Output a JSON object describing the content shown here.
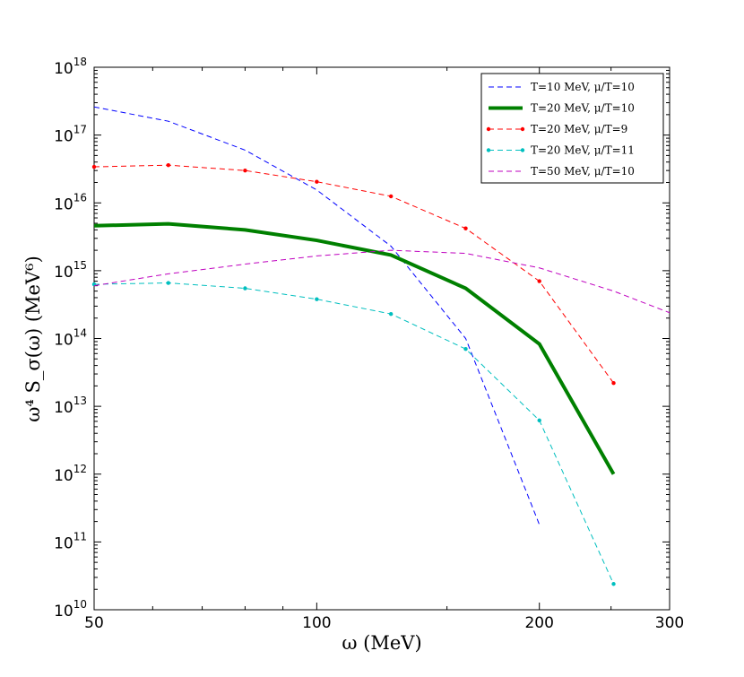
{
  "chart_data": {
    "type": "line",
    "title": "",
    "xlabel": "ω (MeV)",
    "ylabel": "ω⁴ S_σ(ω) (MeV⁶)",
    "xscale": "log",
    "yscale": "log",
    "xlim": [
      50,
      300
    ],
    "ylim": [
      10000000000.0,
      1e+18
    ],
    "x_ticks": [
      {
        "value": 50,
        "label": "50"
      },
      {
        "value": 100,
        "label": "100"
      },
      {
        "value": 200,
        "label": "200"
      },
      {
        "value": 300,
        "label": "300"
      }
    ],
    "y_ticks": [
      {
        "exp": 10,
        "label": "10"
      },
      {
        "exp": 11,
        "label": "10"
      },
      {
        "exp": 12,
        "label": "10"
      },
      {
        "exp": 13,
        "label": "10"
      },
      {
        "exp": 14,
        "label": "10"
      },
      {
        "exp": 15,
        "label": "10"
      },
      {
        "exp": 16,
        "label": "10"
      },
      {
        "exp": 17,
        "label": "10"
      },
      {
        "exp": 18,
        "label": "10"
      }
    ],
    "legend_position": "top-right",
    "series": [
      {
        "name": "T=10 MeV, μ/T=10",
        "color": "#0000ff",
        "style": "dashed",
        "markers": false,
        "x": [
          50,
          63,
          80,
          100,
          126,
          159,
          200
        ],
        "y": [
          2.6e+17,
          1.6e+17,
          6e+16,
          1.55e+16,
          2300000000000000.0,
          100000000000000.0,
          180000000000.0
        ]
      },
      {
        "name": "T=20 MeV, μ/T=10",
        "color": "#008000",
        "style": "solid-thick",
        "markers": false,
        "x": [
          50,
          63,
          80,
          100,
          126,
          159,
          200,
          252
        ],
        "y": [
          4600000000000000.0,
          4900000000000000.0,
          4000000000000000.0,
          2800000000000000.0,
          1700000000000000.0,
          550000000000000.0,
          83000000000000.0,
          1000000000000.0
        ]
      },
      {
        "name": "T=20 MeV, μ/T=9",
        "color": "#ff0000",
        "style": "dashed",
        "markers": true,
        "x": [
          50,
          63,
          80,
          100,
          126,
          159,
          200,
          252
        ],
        "y": [
          3.4e+16,
          3.6e+16,
          3e+16,
          2.05e+16,
          1.25e+16,
          4200000000000000.0,
          700000000000000.0,
          22000000000000.0
        ]
      },
      {
        "name": "T=20 MeV, μ/T=11",
        "color": "#00bfbf",
        "style": "dashed",
        "markers": true,
        "x": [
          50,
          63,
          80,
          100,
          126,
          159,
          200,
          252
        ],
        "y": [
          630000000000000.0,
          660000000000000.0,
          550000000000000.0,
          380000000000000.0,
          230000000000000.0,
          70000000000000.0,
          6200000000000.0,
          24000000000.0
        ]
      },
      {
        "name": "T=50 MeV, μ/T=10",
        "color": "#bf00bf",
        "style": "dashed",
        "markers": false,
        "x": [
          50,
          63,
          80,
          100,
          126,
          159,
          200,
          252,
          300
        ],
        "y": [
          600000000000000.0,
          900000000000000.0,
          1250000000000000.0,
          1650000000000000.0,
          2000000000000000.0,
          1800000000000000.0,
          1100000000000000.0,
          500000000000000.0,
          240000000000000.0
        ]
      }
    ]
  }
}
